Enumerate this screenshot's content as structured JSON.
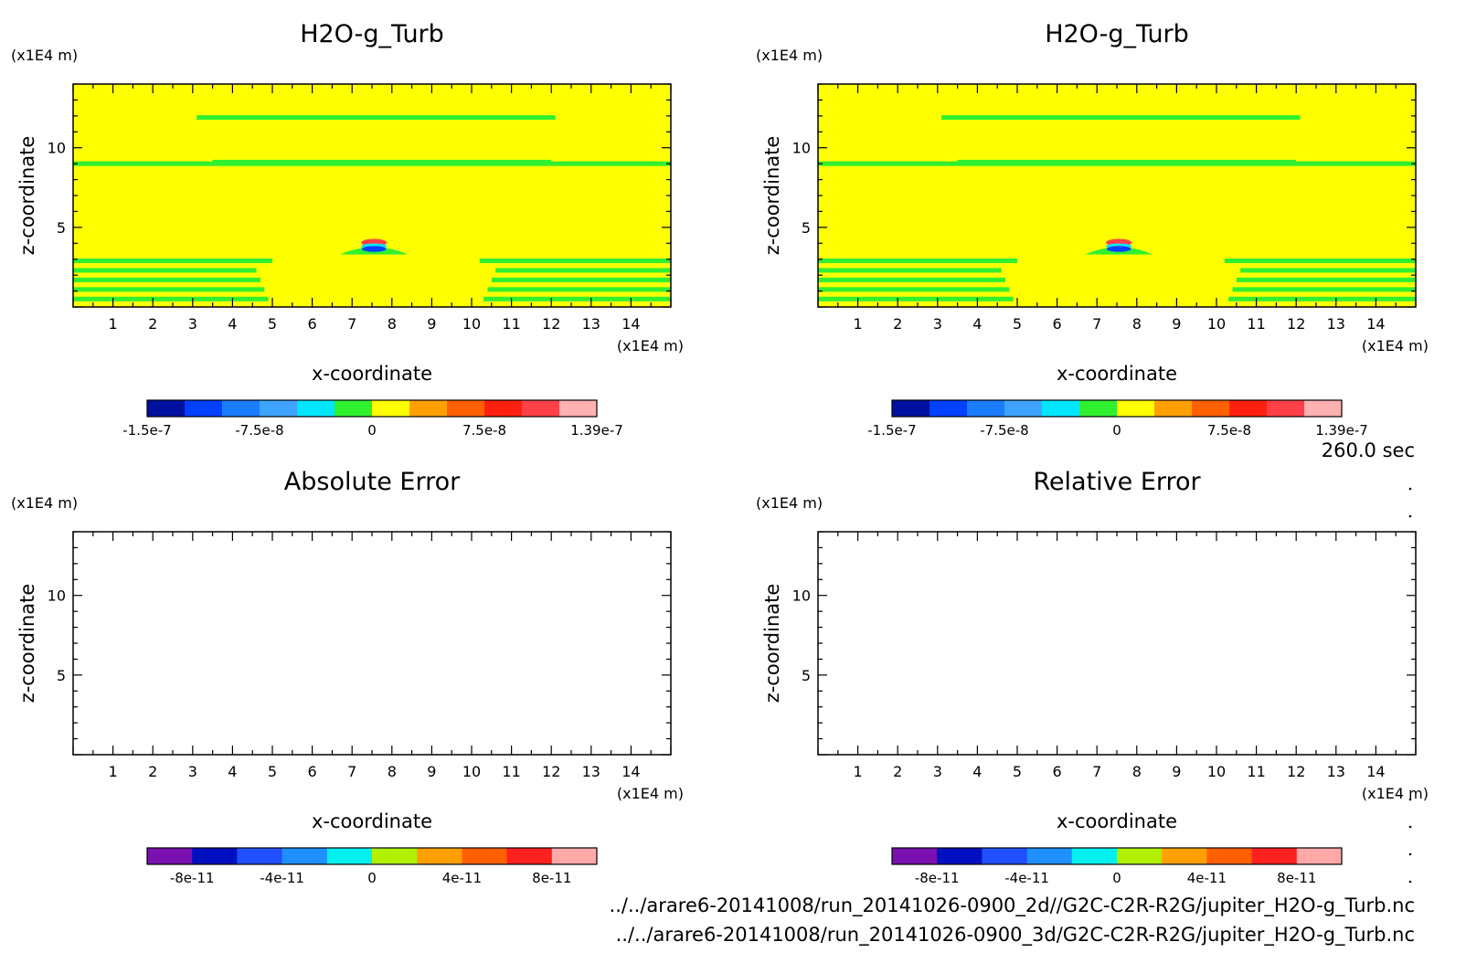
{
  "figure": {
    "time_label": "260.0 sec",
    "files": [
      "../../arare6-20141008/run_20141026-0900_2d//G2C-C2R-R2G/jupiter_H2O-g_Turb.nc",
      "../../arare6-20141008/run_20141026-0900_3d/G2C-C2R-R2G/jupiter_H2O-g_Turb.nc"
    ]
  },
  "chart_data": [
    {
      "type": "heatmap",
      "title": "H2O-g_Turb",
      "xlabel": "x-coordinate",
      "ylabel": "z-coordinate",
      "x_unit": "(x1E4 m)",
      "z_unit": "(x1E4 m)",
      "xlim": [
        0,
        15
      ],
      "zlim": [
        0,
        14
      ],
      "x_ticks": [
        "1",
        "2",
        "3",
        "4",
        "5",
        "6",
        "7",
        "8",
        "9",
        "10",
        "11",
        "12",
        "13",
        "14"
      ],
      "z_ticks": [
        "5",
        "10"
      ],
      "colorbar": {
        "levels": [
          -1.5e-07,
          1.39e-07
        ],
        "labels": [
          "-1.5e-7",
          "-7.5e-8",
          "0",
          "7.5e-8",
          "1.39e-7"
        ],
        "colors": [
          "#0010a0",
          "#0040ff",
          "#1a7cff",
          "#3fa4ff",
          "#00e6ff",
          "#30f030",
          "#ffff00",
          "#ffa000",
          "#ff6000",
          "#ff2010",
          "#ff4048",
          "#ffb0b0"
        ]
      },
      "background_color": "#ffff00",
      "feature_color": "#30f030",
      "features": [
        {
          "kind": "band",
          "x": [
            3.1,
            12.1
          ],
          "z": 11.9
        },
        {
          "kind": "band",
          "x": [
            0,
            15
          ],
          "z": 9.0
        },
        {
          "kind": "band",
          "x": [
            3.5,
            12.0
          ],
          "z": 9.1
        },
        {
          "kind": "band",
          "x": [
            0,
            5.0
          ],
          "z": 2.9
        },
        {
          "kind": "band",
          "x": [
            10.2,
            15
          ],
          "z": 2.9
        },
        {
          "kind": "band",
          "x": [
            0,
            4.6
          ],
          "z": 2.3
        },
        {
          "kind": "band",
          "x": [
            10.6,
            15
          ],
          "z": 2.3
        },
        {
          "kind": "band",
          "x": [
            0,
            4.7
          ],
          "z": 1.7
        },
        {
          "kind": "band",
          "x": [
            10.5,
            15
          ],
          "z": 1.7
        },
        {
          "kind": "band",
          "x": [
            0,
            4.8
          ],
          "z": 1.1
        },
        {
          "kind": "band",
          "x": [
            10.4,
            15
          ],
          "z": 1.1
        },
        {
          "kind": "band",
          "x": [
            0,
            4.9
          ],
          "z": 0.5
        },
        {
          "kind": "band",
          "x": [
            10.3,
            15
          ],
          "z": 0.5
        },
        {
          "kind": "dome",
          "x": [
            6.7,
            8.4
          ],
          "z": 3.3
        }
      ]
    },
    {
      "type": "heatmap",
      "title": "H2O-g_Turb",
      "xlabel": "x-coordinate",
      "ylabel": "z-coordinate",
      "x_unit": "(x1E4 m)",
      "z_unit": "(x1E4 m)",
      "xlim": [
        0,
        15
      ],
      "zlim": [
        0,
        14
      ],
      "x_ticks": [
        "1",
        "2",
        "3",
        "4",
        "5",
        "6",
        "7",
        "8",
        "9",
        "10",
        "11",
        "12",
        "13",
        "14"
      ],
      "z_ticks": [
        "5",
        "10"
      ],
      "colorbar": {
        "levels": [
          -1.5e-07,
          1.39e-07
        ],
        "labels": [
          "-1.5e-7",
          "-7.5e-8",
          "0",
          "7.5e-8",
          "1.39e-7"
        ],
        "colors": [
          "#0010a0",
          "#0040ff",
          "#1a7cff",
          "#3fa4ff",
          "#00e6ff",
          "#30f030",
          "#ffff00",
          "#ffa000",
          "#ff6000",
          "#ff2010",
          "#ff4048",
          "#ffb0b0"
        ]
      },
      "background_color": "#ffff00",
      "feature_color": "#30f030",
      "features": [
        {
          "kind": "band",
          "x": [
            3.1,
            12.1
          ],
          "z": 11.9
        },
        {
          "kind": "band",
          "x": [
            0,
            15
          ],
          "z": 9.0
        },
        {
          "kind": "band",
          "x": [
            3.5,
            12.0
          ],
          "z": 9.1
        },
        {
          "kind": "band",
          "x": [
            0,
            5.0
          ],
          "z": 2.9
        },
        {
          "kind": "band",
          "x": [
            10.2,
            15
          ],
          "z": 2.9
        },
        {
          "kind": "band",
          "x": [
            0,
            4.6
          ],
          "z": 2.3
        },
        {
          "kind": "band",
          "x": [
            10.6,
            15
          ],
          "z": 2.3
        },
        {
          "kind": "band",
          "x": [
            0,
            4.7
          ],
          "z": 1.7
        },
        {
          "kind": "band",
          "x": [
            10.5,
            15
          ],
          "z": 1.7
        },
        {
          "kind": "band",
          "x": [
            0,
            4.8
          ],
          "z": 1.1
        },
        {
          "kind": "band",
          "x": [
            10.4,
            15
          ],
          "z": 1.1
        },
        {
          "kind": "band",
          "x": [
            0,
            4.9
          ],
          "z": 0.5
        },
        {
          "kind": "band",
          "x": [
            10.3,
            15
          ],
          "z": 0.5
        },
        {
          "kind": "dome",
          "x": [
            6.7,
            8.4
          ],
          "z": 3.3
        }
      ]
    },
    {
      "type": "heatmap",
      "title": "Absolute Error",
      "xlabel": "x-coordinate",
      "ylabel": "z-coordinate",
      "x_unit": "(x1E4 m)",
      "z_unit": "(x1E4 m)",
      "xlim": [
        0,
        15
      ],
      "zlim": [
        0,
        14
      ],
      "x_ticks": [
        "1",
        "2",
        "3",
        "4",
        "5",
        "6",
        "7",
        "8",
        "9",
        "10",
        "11",
        "12",
        "13",
        "14"
      ],
      "z_ticks": [
        "5",
        "10"
      ],
      "colorbar": {
        "levels": [
          -1e-10,
          1e-10
        ],
        "labels": [
          "-8e-11",
          "-4e-11",
          "0",
          "4e-11",
          "8e-11"
        ],
        "colors": [
          "#7a10b0",
          "#0010c0",
          "#2050ff",
          "#2090ff",
          "#00f0f0",
          "#b0f000",
          "#ffa000",
          "#ff6000",
          "#ff2020",
          "#ffa8a8"
        ]
      },
      "background_color": "#ffffff",
      "features": []
    },
    {
      "type": "heatmap",
      "title": "Relative Error",
      "xlabel": "x-coordinate",
      "ylabel": "z-coordinate",
      "x_unit": "(x1E4 m)",
      "z_unit": "(x1E4 m)",
      "xlim": [
        0,
        15
      ],
      "zlim": [
        0,
        14
      ],
      "x_ticks": [
        "1",
        "2",
        "3",
        "4",
        "5",
        "6",
        "7",
        "8",
        "9",
        "10",
        "11",
        "12",
        "13",
        "14"
      ],
      "z_ticks": [
        "5",
        "10"
      ],
      "colorbar": {
        "levels": [
          -1e-10,
          1e-10
        ],
        "labels": [
          "-8e-11",
          "-4e-11",
          "0",
          "4e-11",
          "8e-11"
        ],
        "colors": [
          "#7a10b0",
          "#0010c0",
          "#2050ff",
          "#2090ff",
          "#00f0f0",
          "#b0f000",
          "#ffa000",
          "#ff6000",
          "#ff2020",
          "#ffa8a8"
        ]
      },
      "background_color": "#ffffff",
      "features": []
    }
  ]
}
